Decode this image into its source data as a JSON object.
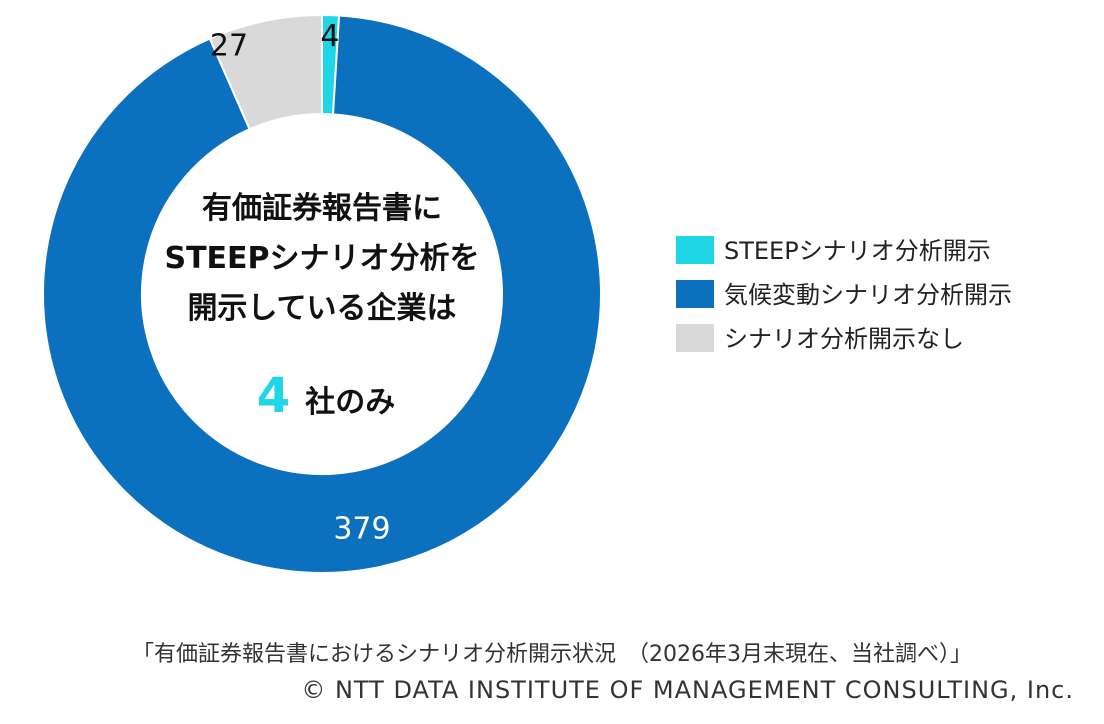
{
  "chart_data": {
    "type": "pie",
    "categories": [
      "STEEPシナリオ分析開示",
      "気候変動シナリオ分析開示",
      "シナリオ分析開示なし"
    ],
    "values": [
      4,
      379,
      27
    ],
    "colors": [
      "#1ed6e6",
      "#0b70be",
      "#d9d9d9"
    ],
    "label_colors": [
      "#111111",
      "#ffffff",
      "#111111"
    ],
    "legend_position": "right",
    "donut": true
  },
  "center": {
    "line1": "有価証券報告書に",
    "line2": "STEEPシナリオ分析を",
    "line3": "開示している企業は",
    "count": "4",
    "suffix": "社のみ"
  },
  "caption": "「有価証券報告書におけるシナリオ分析開示状況　（2026年3月末現在、当社調べ）」",
  "copyright": "© NTT DATA INSTITUTE OF MANAGEMENT CONSULTING, Inc."
}
